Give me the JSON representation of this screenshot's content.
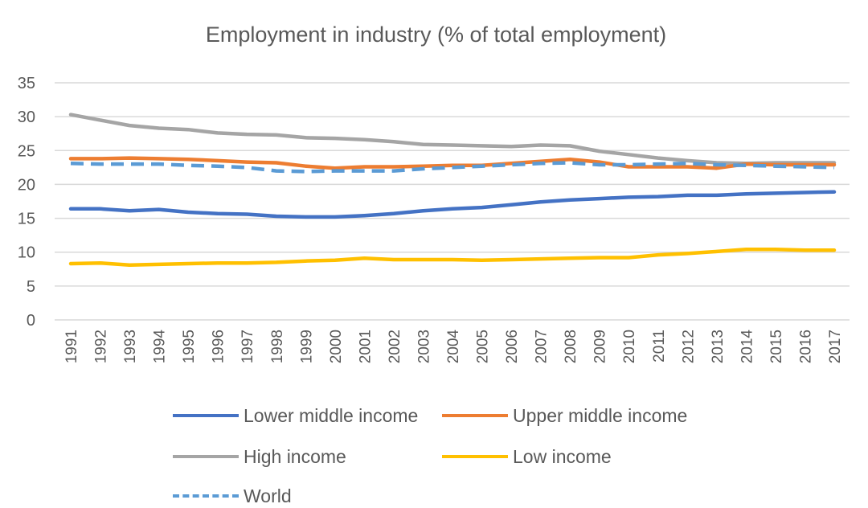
{
  "chart_data": {
    "type": "line",
    "title": "Employment in industry (% of total employment)",
    "xlabel": "",
    "ylabel": "",
    "ylim": [
      0,
      35
    ],
    "yticks": [
      0,
      5,
      10,
      15,
      20,
      25,
      30,
      35
    ],
    "grid": true,
    "legend_position": "bottom",
    "x": [
      "1991",
      "1992",
      "1993",
      "1994",
      "1995",
      "1996",
      "1997",
      "1998",
      "1999",
      "2000",
      "2001",
      "2002",
      "2003",
      "2004",
      "2005",
      "2006",
      "2007",
      "2008",
      "2009",
      "2010",
      "2011",
      "2012",
      "2013",
      "2014",
      "2015",
      "2016",
      "2017"
    ],
    "series": [
      {
        "name": "Lower middle income",
        "color": "#4472C4",
        "dash": "solid",
        "values": [
          16.4,
          16.4,
          16.1,
          16.3,
          15.9,
          15.7,
          15.6,
          15.3,
          15.2,
          15.2,
          15.4,
          15.7,
          16.1,
          16.4,
          16.6,
          17.0,
          17.4,
          17.7,
          17.9,
          18.1,
          18.2,
          18.4,
          18.4,
          18.6,
          18.7,
          18.8,
          18.9
        ]
      },
      {
        "name": "Upper middle income",
        "color": "#ED7D31",
        "dash": "solid",
        "values": [
          23.8,
          23.8,
          23.9,
          23.8,
          23.7,
          23.5,
          23.3,
          23.2,
          22.7,
          22.4,
          22.6,
          22.6,
          22.7,
          22.8,
          22.8,
          23.1,
          23.4,
          23.7,
          23.3,
          22.6,
          22.6,
          22.6,
          22.4,
          23.0,
          22.9,
          22.9,
          22.9
        ]
      },
      {
        "name": "High income",
        "color": "#A5A5A5",
        "dash": "solid",
        "values": [
          30.3,
          29.5,
          28.7,
          28.3,
          28.1,
          27.6,
          27.4,
          27.3,
          26.9,
          26.8,
          26.6,
          26.3,
          25.9,
          25.8,
          25.7,
          25.6,
          25.8,
          25.7,
          24.9,
          24.4,
          23.9,
          23.5,
          23.2,
          23.1,
          23.2,
          23.2,
          23.2
        ]
      },
      {
        "name": "Low income",
        "color": "#FFC000",
        "dash": "solid",
        "values": [
          8.3,
          8.4,
          8.1,
          8.2,
          8.3,
          8.4,
          8.4,
          8.5,
          8.7,
          8.8,
          9.1,
          8.9,
          8.9,
          8.9,
          8.8,
          8.9,
          9.0,
          9.1,
          9.2,
          9.2,
          9.6,
          9.8,
          10.1,
          10.4,
          10.4,
          10.3,
          10.3
        ]
      },
      {
        "name": "World",
        "color": "#5B9BD5",
        "dash": "dashed",
        "values": [
          23.1,
          23.0,
          23.0,
          23.0,
          22.8,
          22.7,
          22.5,
          22.0,
          21.9,
          22.0,
          22.0,
          22.0,
          22.3,
          22.5,
          22.7,
          22.9,
          23.1,
          23.2,
          22.9,
          22.9,
          23.0,
          23.1,
          22.9,
          22.8,
          22.7,
          22.6,
          22.5
        ]
      }
    ]
  }
}
